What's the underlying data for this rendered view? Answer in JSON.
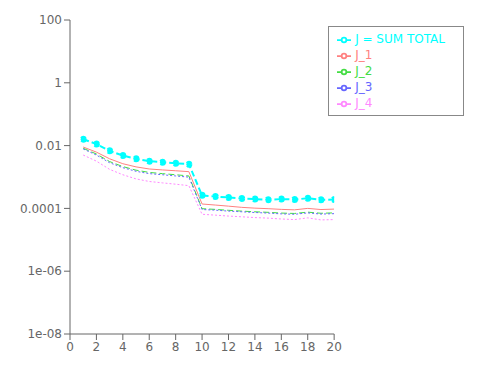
{
  "chart_data": {
    "type": "line",
    "x": [
      1,
      2,
      3,
      4,
      5,
      6,
      7,
      8,
      9,
      10,
      11,
      12,
      13,
      14,
      15,
      16,
      17,
      18,
      19,
      20
    ],
    "series": [
      {
        "name": "J_1",
        "color": "#ff8080",
        "line_style": "solid",
        "values": [
          0.009,
          0.0062,
          0.0038,
          0.00265,
          0.0021,
          0.0018,
          0.00168,
          0.00158,
          0.00148,
          0.000138,
          0.000128,
          0.000118,
          0.000108,
          0.000102,
          9.8e-05,
          9.3e-05,
          9e-05,
          0.0001,
          9.2e-05,
          9.5e-05
        ]
      },
      {
        "name": "J_2",
        "color": "#44dd44",
        "line_style": "dashed",
        "values": [
          0.0082,
          0.0054,
          0.0031,
          0.00215,
          0.00165,
          0.0014,
          0.00128,
          0.00118,
          0.00108,
          9.8e-05,
          9.3e-05,
          8.7e-05,
          8.2e-05,
          7.8e-05,
          7.5e-05,
          7.1e-05,
          6.9e-05,
          7.6e-05,
          7e-05,
          7.2e-05
        ]
      },
      {
        "name": "J_3",
        "color": "#6666ff",
        "line_style": "dotted",
        "values": [
          0.0078,
          0.005,
          0.00285,
          0.00198,
          0.00152,
          0.00128,
          0.00118,
          0.00108,
          0.00099,
          9.2e-05,
          8.8e-05,
          8.2e-05,
          7.8e-05,
          7.4e-05,
          7.1e-05,
          6.7e-05,
          6.5e-05,
          7.2e-05,
          6.6e-05,
          6.8e-05
        ]
      },
      {
        "name": "J_4",
        "color": "#ff88ff",
        "line_style": "dotted",
        "values": [
          0.005,
          0.0032,
          0.00175,
          0.00118,
          0.00087,
          0.00072,
          0.00065,
          0.00059,
          0.00053,
          6.5e-05,
          6.1e-05,
          5.7e-05,
          5.4e-05,
          5.1e-05,
          4.9e-05,
          4.6e-05,
          4.4e-05,
          5e-05,
          4.3e-05,
          4.4e-05
        ]
      },
      {
        "name": "J = SUM TOTAL",
        "color": "#00ffff",
        "line_style": "dashed",
        "marker": "circle",
        "values": [
          0.016,
          0.0112,
          0.0068,
          0.0048,
          0.0038,
          0.0032,
          0.00295,
          0.00275,
          0.00255,
          0.00026,
          0.00024,
          0.000222,
          0.000208,
          0.000198,
          0.00019,
          0.000198,
          0.000192,
          0.00021,
          0.000188,
          0.000192
        ]
      }
    ],
    "xlim": [
      0,
      20
    ],
    "xticks": [
      0,
      2,
      4,
      6,
      8,
      10,
      12,
      14,
      16,
      18,
      20
    ],
    "ylim": [
      1e-08,
      100
    ],
    "yticks": [
      {
        "value": 1e-08,
        "label": "1e-08"
      },
      {
        "value": 1e-06,
        "label": "1e-06"
      },
      0.0001,
      0.01,
      1,
      100
    ],
    "log": "y",
    "grid": false,
    "legend": "upper right"
  }
}
